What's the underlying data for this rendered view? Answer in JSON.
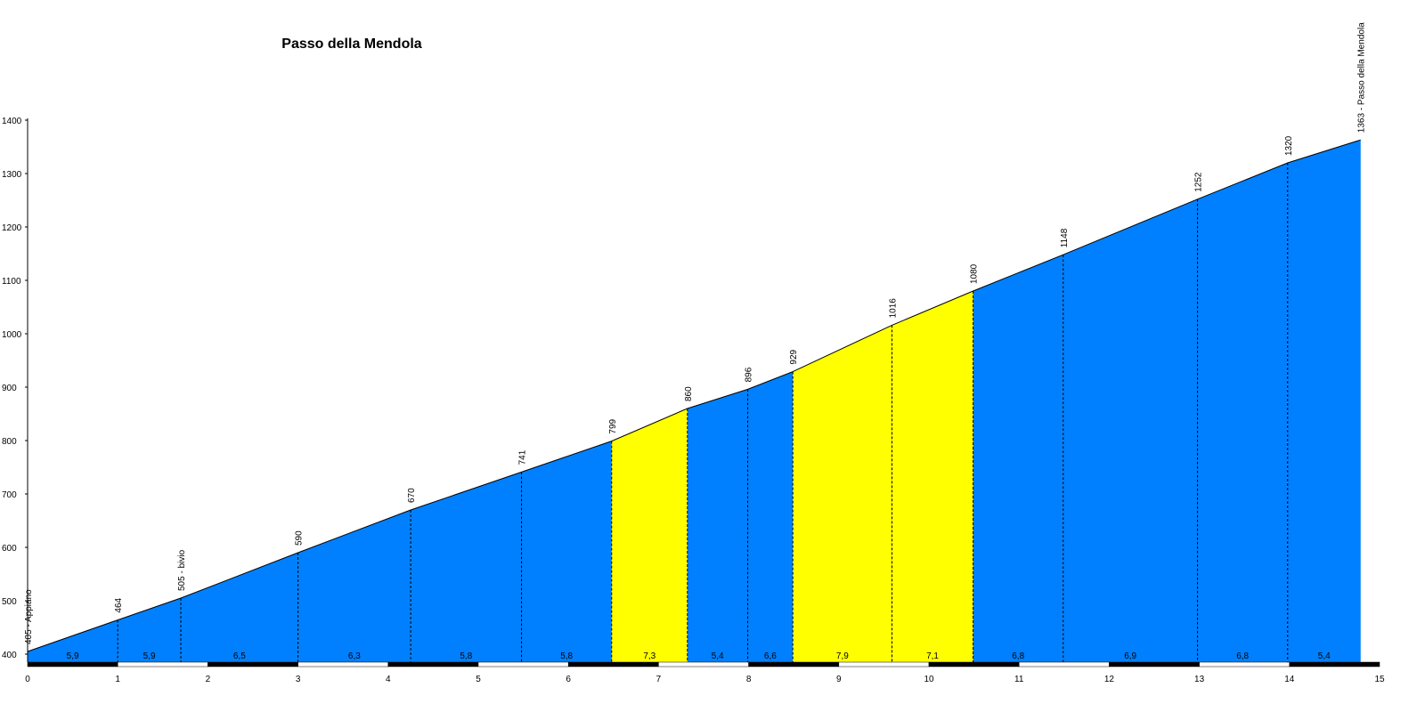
{
  "chart_data": {
    "type": "area",
    "title": "Passo della Mendola",
    "xlabel": "",
    "ylabel": "",
    "xlim": [
      0,
      15
    ],
    "ylim": [
      400,
      1400
    ],
    "x_ticks": [
      "0",
      "1",
      "2",
      "3",
      "4",
      "5",
      "6",
      "7",
      "8",
      "9",
      "10",
      "11",
      "12",
      "13",
      "14",
      "15"
    ],
    "y_ticks": [
      "400",
      "500",
      "600",
      "700",
      "800",
      "900",
      "1000",
      "1100",
      "1200",
      "1300",
      "1400"
    ],
    "points": [
      {
        "x": 0,
        "y": 405,
        "label": "405 - Appiano"
      },
      {
        "x": 1,
        "y": 464,
        "label": "464"
      },
      {
        "x": 1.7,
        "y": 505,
        "label": "505 - bivio"
      },
      {
        "x": 3,
        "y": 590,
        "label": "590"
      },
      {
        "x": 4.25,
        "y": 670,
        "label": "670"
      },
      {
        "x": 5.48,
        "y": 741,
        "label": "741"
      },
      {
        "x": 6.48,
        "y": 799,
        "label": "799"
      },
      {
        "x": 7.32,
        "y": 860,
        "label": "860"
      },
      {
        "x": 7.99,
        "y": 896,
        "label": "896"
      },
      {
        "x": 8.49,
        "y": 929,
        "label": "929"
      },
      {
        "x": 9.59,
        "y": 1016,
        "label": "1016"
      },
      {
        "x": 10.49,
        "y": 1080,
        "label": "1080"
      },
      {
        "x": 11.49,
        "y": 1148,
        "label": "1148"
      },
      {
        "x": 12.98,
        "y": 1252,
        "label": "1252"
      },
      {
        "x": 13.98,
        "y": 1320,
        "label": "1320"
      },
      {
        "x": 14.79,
        "y": 1363,
        "label": "1363 - Passo della Mendola"
      }
    ],
    "gradients": [
      "5,9",
      "5,9",
      "6,5",
      "6,3",
      "5,8",
      "5,8",
      "7,3",
      "5,4",
      "6,6",
      "7,9",
      "7,1",
      "6,8",
      "6,9",
      "6,8",
      "5,4"
    ],
    "segment_colors": [
      "#0080ff",
      "#0080ff",
      "#0080ff",
      "#0080ff",
      "#0080ff",
      "#0080ff",
      "#ffff00",
      "#0080ff",
      "#0080ff",
      "#ffff00",
      "#ffff00",
      "#0080ff",
      "#0080ff",
      "#0080ff",
      "#0080ff"
    ],
    "colors": {
      "climb": "#0080ff",
      "steep": "#ffff00",
      "axis": "#000000"
    },
    "grid": false,
    "legend": "none"
  }
}
